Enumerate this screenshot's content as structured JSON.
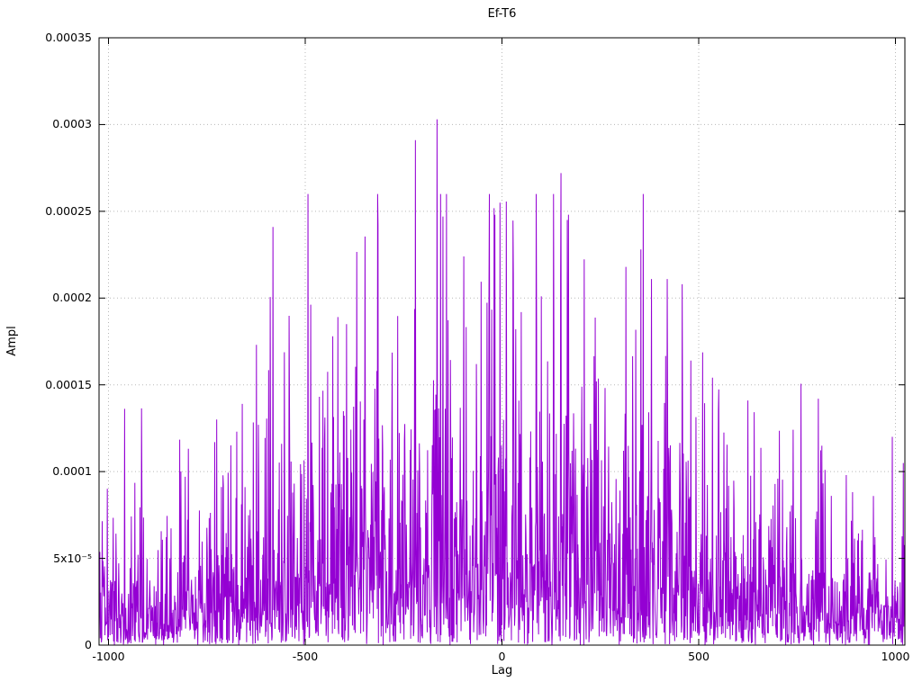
{
  "figure": {
    "background": "#ffffff",
    "border_color": "#000000",
    "grid_color": "#b8b8b8",
    "text_color": "#000000"
  },
  "chart_data": {
    "type": "line",
    "title": "Ef-T6",
    "xlabel": "Lag",
    "ylabel": "Ampl",
    "xlim": [
      -1024,
      1024
    ],
    "ylim": [
      0,
      0.00035
    ],
    "grid": true,
    "legend": "none",
    "line_color": "#9400d3",
    "x_ticks": [
      {
        "value": -1000,
        "label": "-1000"
      },
      {
        "value": -500,
        "label": "-500"
      },
      {
        "value": 0,
        "label": "0"
      },
      {
        "value": 500,
        "label": "500"
      },
      {
        "value": 1000,
        "label": "1000"
      }
    ],
    "y_ticks": [
      {
        "value": 0,
        "label": "0"
      },
      {
        "value": 5e-05,
        "label": "5x10⁻⁵"
      },
      {
        "value": 0.0001,
        "label": "0.0001"
      },
      {
        "value": 0.00015,
        "label": "0.00015"
      },
      {
        "value": 0.0002,
        "label": "0.0002"
      },
      {
        "value": 0.00025,
        "label": "0.00025"
      },
      {
        "value": 0.0003,
        "label": "0.0003"
      },
      {
        "value": 0.00035,
        "label": "0.00035"
      }
    ],
    "synthesis": {
      "description": "Noisy lag-amplitude series: exponential-distributed amplitudes under a Gaussian envelope peaked at lag 0, plus the prominent peaks read from the plot.",
      "seed": 90210,
      "n_points": 2049,
      "noise_mean_edge": 1.85e-05,
      "noise_mean_center_add": 3.95e-05,
      "envelope_width": 620,
      "clip_max": 0.00026,
      "peaks": [
        [
          -165,
          0.000303
        ],
        [
          -220,
          0.000291
        ],
        [
          150,
          0.000272
        ],
        [
          -5,
          0.000255
        ],
        [
          -18,
          0.000248
        ],
        [
          166,
          0.000245
        ],
        [
          -150,
          0.000247
        ],
        [
          -315,
          0.000242
        ],
        [
          -97,
          0.000224
        ],
        [
          315,
          0.000218
        ],
        [
          380,
          0.000211
        ],
        [
          420,
          0.000211
        ],
        [
          -395,
          0.000185
        ],
        [
          -430,
          0.000178
        ],
        [
          480,
          0.000164
        ],
        [
          625,
          0.000141
        ],
        [
          -660,
          0.000139
        ],
        [
          -725,
          0.00013
        ],
        [
          875,
          9.8e-05
        ],
        [
          -805,
          9.7e-05
        ]
      ]
    }
  }
}
